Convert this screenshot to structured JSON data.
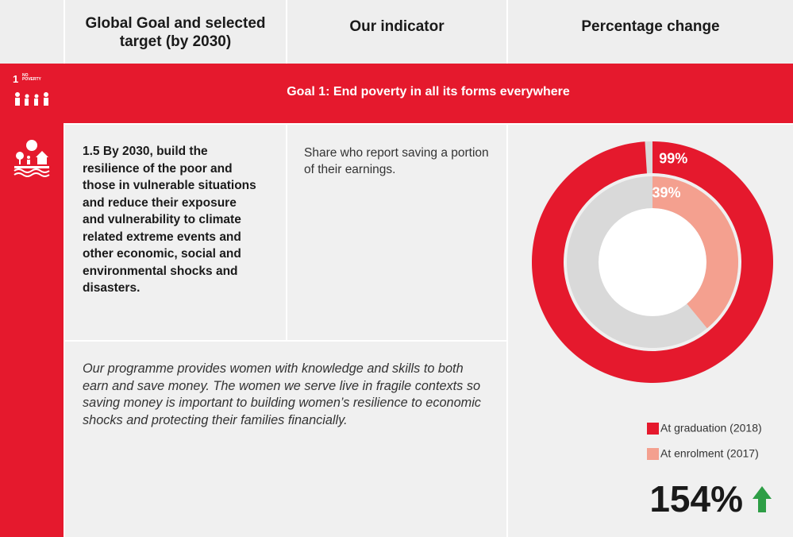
{
  "header": {
    "columns": [
      "Global Goal and selected target (by 2030)",
      "Our indicator",
      "Percentage change"
    ]
  },
  "goal": {
    "number": "1",
    "icon_label": "NO POVERTY",
    "title": "Goal 1: End poverty in all its forms everywhere"
  },
  "target": {
    "id": "1.5",
    "text": "By 2030, build the resilience of the poor and those in vulnerable situations and reduce their exposure and vulnerability to climate related extreme events and other economic, social and environmental shocks and disasters."
  },
  "indicator": "Share who report saving a portion of their earnings.",
  "narrative": "Our programme provides women with knowledge and skills to both earn and save money. The women we serve live in fragile contexts so saving money is important to building women’s resilience to economic shocks and protecting their families financially.",
  "chart_data": {
    "type": "donut",
    "remainder_color": "#d9d9d9",
    "series": [
      {
        "name": "At graduation (2018)",
        "color": "#e5192d",
        "values": [
          99
        ],
        "value_labels": [
          "99%"
        ]
      },
      {
        "name": "At enrolment (2017)",
        "color": "#f4a08f",
        "values": [
          39
        ],
        "value_labels": [
          "39%"
        ]
      }
    ]
  },
  "change": "154%"
}
